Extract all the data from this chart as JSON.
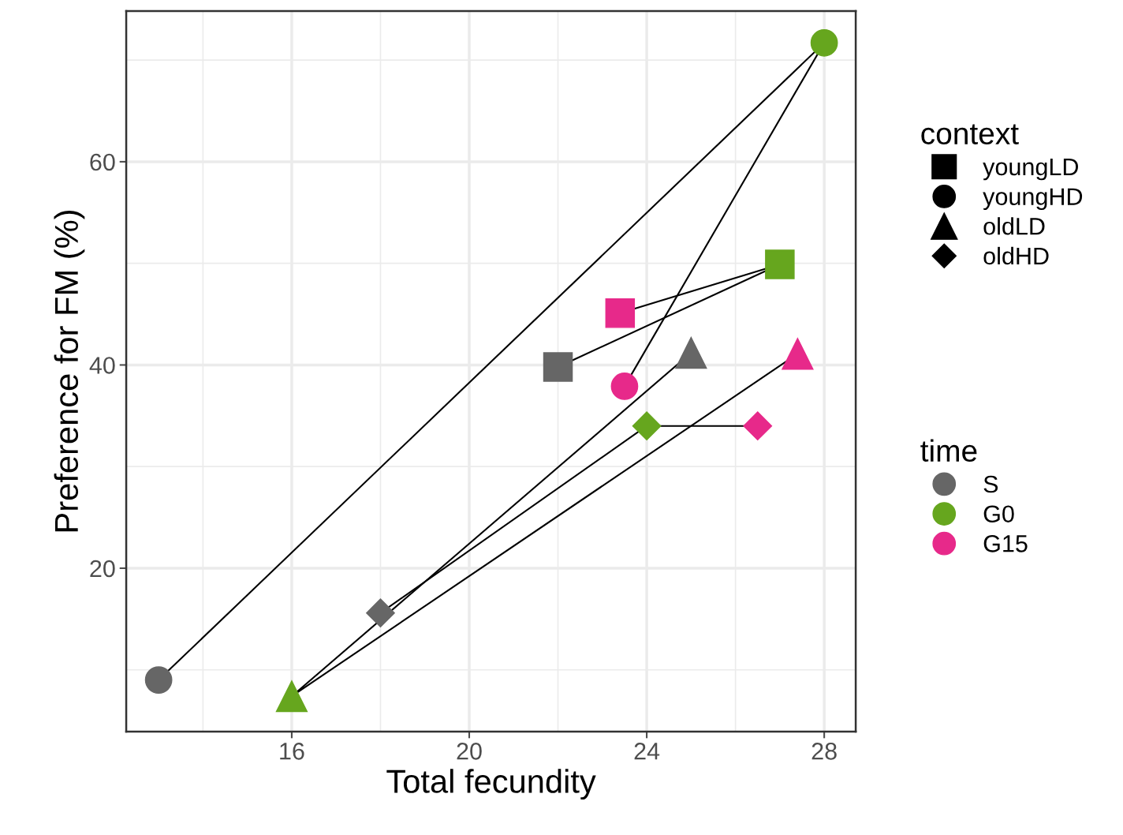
{
  "chart_data": {
    "type": "line",
    "xlabel": "Total fecundity",
    "ylabel": "Preference for FM (%)",
    "xlim": [
      12.27,
      28.71
    ],
    "ylim": [
      3.92,
      74.83
    ],
    "xticks": [
      16,
      20,
      24,
      28
    ],
    "yticks": [
      20,
      40,
      60
    ],
    "grid": true,
    "legend": "right",
    "legend_title": [
      "context",
      "time"
    ],
    "series": [
      {
        "name": "youngLD",
        "color": "#000000",
        "marker": "square",
        "x": [
          22,
          27,
          23.4
        ],
        "values": [
          39.8,
          49.9,
          45.1
        ],
        "colors": [
          "#666666",
          "#66a61e",
          "#e7298a"
        ]
      },
      {
        "name": "youngHD",
        "color": "#000000",
        "marker": "circle",
        "x": [
          13,
          28,
          23.5
        ],
        "values": [
          9,
          71.7,
          37.9
        ],
        "colors": [
          "#666666",
          "#66a61e",
          "#e7298a"
        ]
      },
      {
        "name": "oldLD",
        "color": "#000000",
        "marker": "triangle",
        "x": [
          25,
          16,
          27.4
        ],
        "values": [
          41.2,
          7.4,
          41.1
        ],
        "colors": [
          "#666666",
          "#66a61e",
          "#e7298a"
        ]
      },
      {
        "name": "oldHD",
        "color": "#000000",
        "marker": "diamond",
        "x": [
          18,
          24,
          26.5
        ],
        "values": [
          15.6,
          34.0,
          34.0
        ],
        "colors": [
          "#666666",
          "#66a61e",
          "#e7298a"
        ]
      },
      {
        "name": "S",
        "type": "scatter",
        "color": "#666666",
        "marker": "circle"
      },
      {
        "name": "G0",
        "type": "scatter",
        "color": "#66a61e",
        "marker": "circle"
      },
      {
        "name": "G15",
        "type": "scatter",
        "color": "#e7298a",
        "marker": "circle"
      }
    ]
  }
}
